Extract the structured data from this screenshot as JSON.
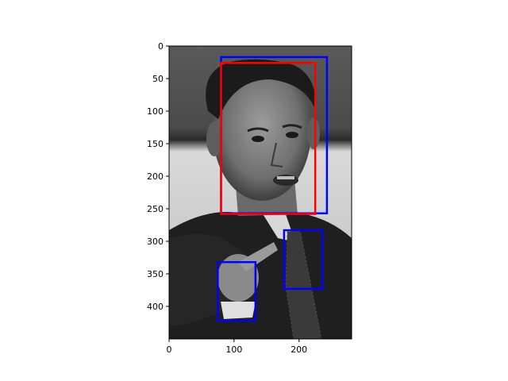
{
  "chart_data": {
    "type": "image-with-bounding-boxes",
    "image_description_icon": "grayscale-photo-of-man-pointing",
    "xlim": [
      0,
      281
    ],
    "ylim": [
      450,
      0
    ],
    "x_ticks": [
      0,
      100,
      200
    ],
    "y_ticks": [
      0,
      50,
      100,
      150,
      200,
      250,
      300,
      350,
      400
    ],
    "boxes": [
      {
        "color": "#0000ff",
        "x0": 80,
        "y0": 17,
        "x1": 243,
        "y1": 257
      },
      {
        "color": "#ff0000",
        "x0": 80,
        "y0": 26,
        "x1": 225,
        "y1": 258
      },
      {
        "color": "#0000ff",
        "x0": 177,
        "y0": 283,
        "x1": 236,
        "y1": 373
      },
      {
        "color": "#0000ff",
        "x0": 75,
        "y0": 332,
        "x1": 133,
        "y1": 422
      }
    ]
  }
}
